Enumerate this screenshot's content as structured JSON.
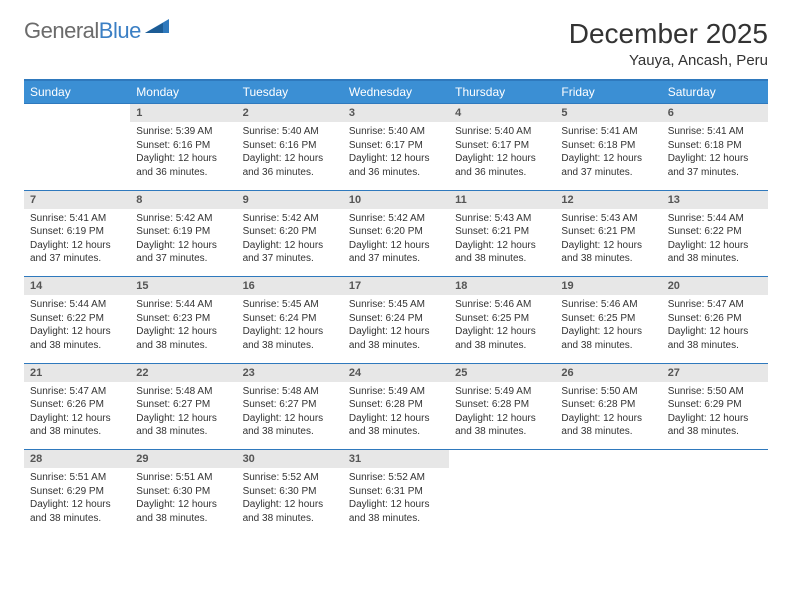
{
  "logo": {
    "text1": "General",
    "text2": "Blue",
    "triangle_color": "#2f79bd"
  },
  "title": "December 2025",
  "location": "Yauya, Ancash, Peru",
  "colors": {
    "header_bg": "#3b8fd4",
    "border": "#2f79bd",
    "daynum_bg": "#e7e7e7",
    "text": "#333333"
  },
  "weekdays": [
    "Sunday",
    "Monday",
    "Tuesday",
    "Wednesday",
    "Thursday",
    "Friday",
    "Saturday"
  ],
  "weeks": [
    [
      null,
      {
        "n": "1",
        "sr": "5:39 AM",
        "ss": "6:16 PM",
        "dl": "12 hours and 36 minutes."
      },
      {
        "n": "2",
        "sr": "5:40 AM",
        "ss": "6:16 PM",
        "dl": "12 hours and 36 minutes."
      },
      {
        "n": "3",
        "sr": "5:40 AM",
        "ss": "6:17 PM",
        "dl": "12 hours and 36 minutes."
      },
      {
        "n": "4",
        "sr": "5:40 AM",
        "ss": "6:17 PM",
        "dl": "12 hours and 36 minutes."
      },
      {
        "n": "5",
        "sr": "5:41 AM",
        "ss": "6:18 PM",
        "dl": "12 hours and 37 minutes."
      },
      {
        "n": "6",
        "sr": "5:41 AM",
        "ss": "6:18 PM",
        "dl": "12 hours and 37 minutes."
      }
    ],
    [
      {
        "n": "7",
        "sr": "5:41 AM",
        "ss": "6:19 PM",
        "dl": "12 hours and 37 minutes."
      },
      {
        "n": "8",
        "sr": "5:42 AM",
        "ss": "6:19 PM",
        "dl": "12 hours and 37 minutes."
      },
      {
        "n": "9",
        "sr": "5:42 AM",
        "ss": "6:20 PM",
        "dl": "12 hours and 37 minutes."
      },
      {
        "n": "10",
        "sr": "5:42 AM",
        "ss": "6:20 PM",
        "dl": "12 hours and 37 minutes."
      },
      {
        "n": "11",
        "sr": "5:43 AM",
        "ss": "6:21 PM",
        "dl": "12 hours and 38 minutes."
      },
      {
        "n": "12",
        "sr": "5:43 AM",
        "ss": "6:21 PM",
        "dl": "12 hours and 38 minutes."
      },
      {
        "n": "13",
        "sr": "5:44 AM",
        "ss": "6:22 PM",
        "dl": "12 hours and 38 minutes."
      }
    ],
    [
      {
        "n": "14",
        "sr": "5:44 AM",
        "ss": "6:22 PM",
        "dl": "12 hours and 38 minutes."
      },
      {
        "n": "15",
        "sr": "5:44 AM",
        "ss": "6:23 PM",
        "dl": "12 hours and 38 minutes."
      },
      {
        "n": "16",
        "sr": "5:45 AM",
        "ss": "6:24 PM",
        "dl": "12 hours and 38 minutes."
      },
      {
        "n": "17",
        "sr": "5:45 AM",
        "ss": "6:24 PM",
        "dl": "12 hours and 38 minutes."
      },
      {
        "n": "18",
        "sr": "5:46 AM",
        "ss": "6:25 PM",
        "dl": "12 hours and 38 minutes."
      },
      {
        "n": "19",
        "sr": "5:46 AM",
        "ss": "6:25 PM",
        "dl": "12 hours and 38 minutes."
      },
      {
        "n": "20",
        "sr": "5:47 AM",
        "ss": "6:26 PM",
        "dl": "12 hours and 38 minutes."
      }
    ],
    [
      {
        "n": "21",
        "sr": "5:47 AM",
        "ss": "6:26 PM",
        "dl": "12 hours and 38 minutes."
      },
      {
        "n": "22",
        "sr": "5:48 AM",
        "ss": "6:27 PM",
        "dl": "12 hours and 38 minutes."
      },
      {
        "n": "23",
        "sr": "5:48 AM",
        "ss": "6:27 PM",
        "dl": "12 hours and 38 minutes."
      },
      {
        "n": "24",
        "sr": "5:49 AM",
        "ss": "6:28 PM",
        "dl": "12 hours and 38 minutes."
      },
      {
        "n": "25",
        "sr": "5:49 AM",
        "ss": "6:28 PM",
        "dl": "12 hours and 38 minutes."
      },
      {
        "n": "26",
        "sr": "5:50 AM",
        "ss": "6:28 PM",
        "dl": "12 hours and 38 minutes."
      },
      {
        "n": "27",
        "sr": "5:50 AM",
        "ss": "6:29 PM",
        "dl": "12 hours and 38 minutes."
      }
    ],
    [
      {
        "n": "28",
        "sr": "5:51 AM",
        "ss": "6:29 PM",
        "dl": "12 hours and 38 minutes."
      },
      {
        "n": "29",
        "sr": "5:51 AM",
        "ss": "6:30 PM",
        "dl": "12 hours and 38 minutes."
      },
      {
        "n": "30",
        "sr": "5:52 AM",
        "ss": "6:30 PM",
        "dl": "12 hours and 38 minutes."
      },
      {
        "n": "31",
        "sr": "5:52 AM",
        "ss": "6:31 PM",
        "dl": "12 hours and 38 minutes."
      },
      null,
      null,
      null
    ]
  ],
  "labels": {
    "sunrise": "Sunrise:",
    "sunset": "Sunset:",
    "daylight": "Daylight:"
  }
}
